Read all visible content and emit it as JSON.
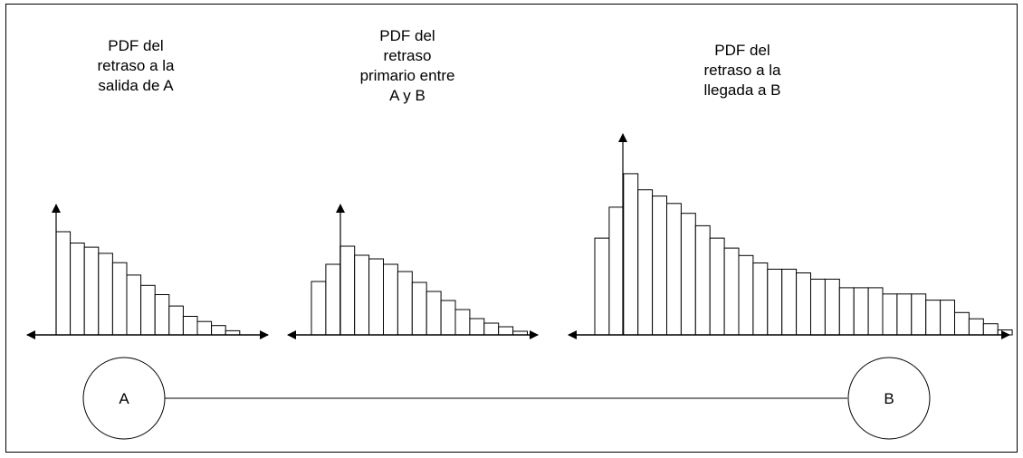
{
  "charts": [
    {
      "caption": [
        "PDF del",
        "retraso a la",
        "salida de A"
      ],
      "values": [
        100,
        89,
        85,
        79,
        70,
        58,
        48,
        39,
        28,
        18,
        13,
        9,
        4
      ]
    },
    {
      "caption": [
        "PDF del",
        "retraso",
        "primario entre",
        "A y B"
      ],
      "values": [
        59,
        78,
        98,
        88,
        84,
        78,
        70,
        58,
        48,
        38,
        28,
        18,
        13,
        9,
        4
      ]
    },
    {
      "caption": [
        "PDF del",
        "retraso a la",
        "llegada a B"
      ],
      "values": [
        78,
        103,
        130,
        117,
        112,
        106,
        98,
        88,
        78,
        70,
        64,
        58,
        53,
        53,
        50,
        45,
        45,
        38,
        38,
        38,
        33,
        33,
        33,
        28,
        28,
        18,
        13,
        9,
        4
      ]
    }
  ],
  "nodes": {
    "a": "A",
    "b": "B"
  },
  "colors": {
    "stroke": "#000000",
    "background": "#ffffff"
  }
}
